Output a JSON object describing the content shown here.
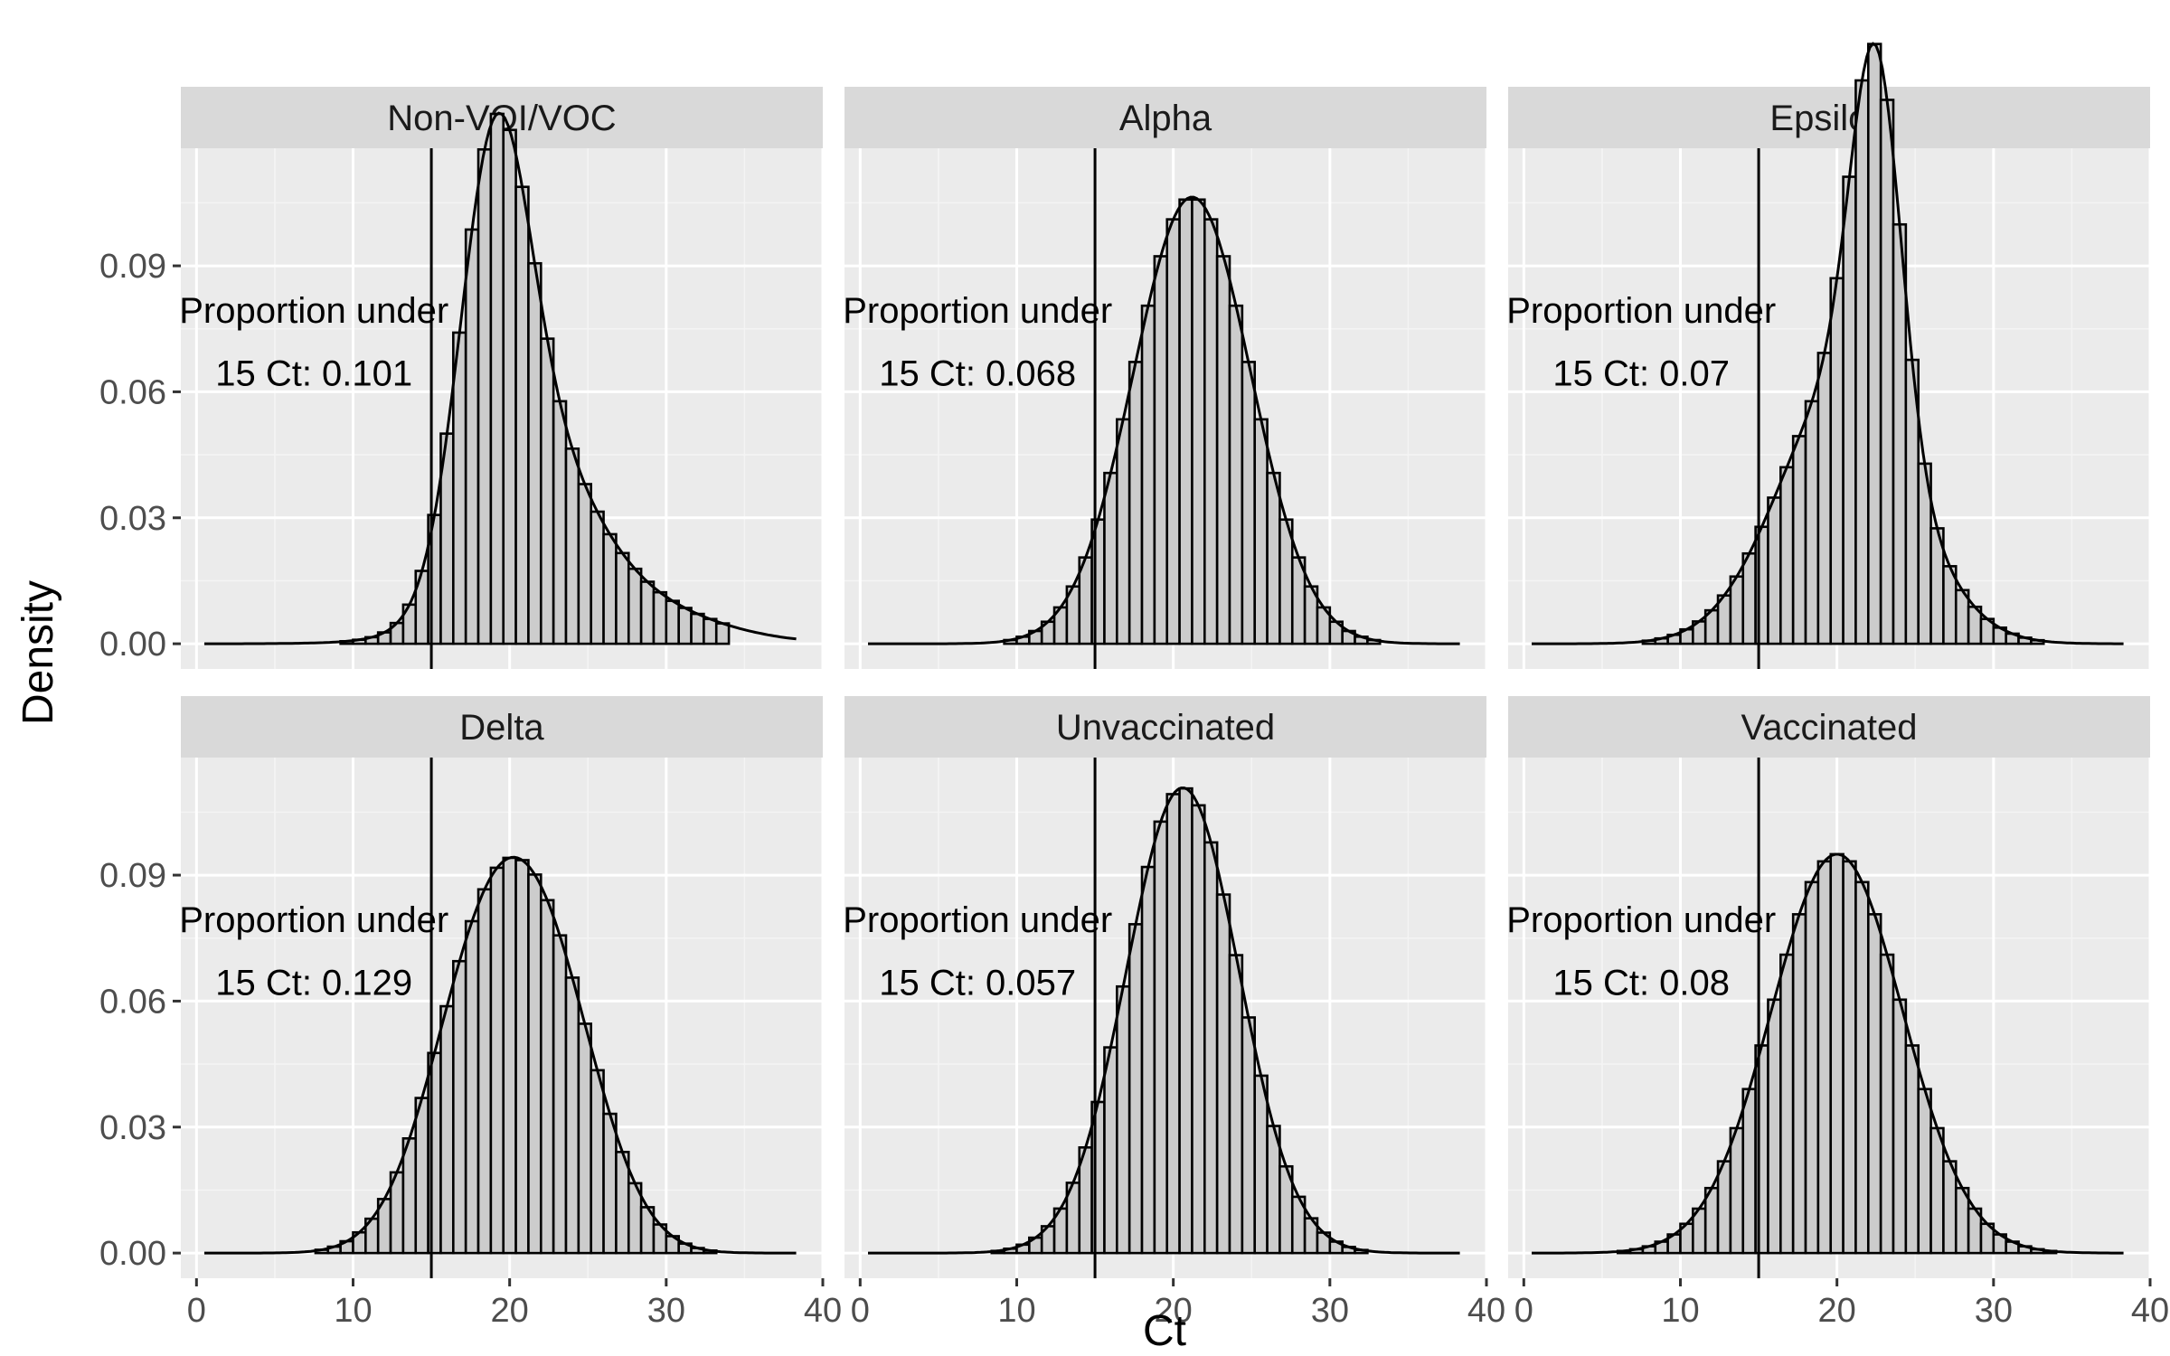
{
  "chart_data": {
    "type": "histogram+density (faceted)",
    "xlabel": "Ct",
    "ylabel": "Density",
    "xlim": [
      -1,
      40
    ],
    "ylim": [
      -0.006,
      0.118
    ],
    "x_ticks": [
      0,
      10,
      20,
      30,
      40
    ],
    "x_tick_labels": [
      "0",
      "10",
      "20",
      "30",
      "40"
    ],
    "y_ticks": [
      0.0,
      0.03,
      0.06,
      0.09
    ],
    "y_tick_labels": [
      "0.00",
      "0.03",
      "0.06",
      "0.09"
    ],
    "threshold_ct": 15,
    "bin_width": 0.8,
    "grid": true,
    "layout": "2 rows x 3 columns, shared axes",
    "panels": [
      {
        "name": "Non-VOI/VOC",
        "annotation_line1": "Proportion under",
        "annotation_line2": "15 Ct: 0.101",
        "components": [
          {
            "w": 0.5,
            "mu": 19.0,
            "sd": 2.2
          },
          {
            "w": 0.3,
            "mu": 21.5,
            "sd": 3.5
          },
          {
            "w": 0.2,
            "mu": 25.0,
            "sd": 6.0
          }
        ]
      },
      {
        "name": "Alpha",
        "annotation_line1": "Proportion under",
        "annotation_line2": "15 Ct: 0.068",
        "components": [
          {
            "w": 1.0,
            "mu": 21.2,
            "sd": 3.75
          }
        ]
      },
      {
        "name": "Epsilon",
        "annotation_line1": "Proportion under",
        "annotation_line2": "15 Ct: 0.07",
        "components": [
          {
            "w": 0.35,
            "mu": 22.5,
            "sd": 1.6
          },
          {
            "w": 0.65,
            "mu": 20.5,
            "sd": 4.2
          }
        ]
      },
      {
        "name": "Delta",
        "annotation_line1": "Proportion under",
        "annotation_line2": "15 Ct: 0.129",
        "components": [
          {
            "w": 0.5,
            "mu": 18.0,
            "sd": 3.4
          },
          {
            "w": 0.5,
            "mu": 22.5,
            "sd": 3.4
          }
        ]
      },
      {
        "name": "Unvaccinated",
        "annotation_line1": "Proportion under",
        "annotation_line2": "15 Ct: 0.057",
        "components": [
          {
            "w": 1.0,
            "mu": 20.6,
            "sd": 3.6
          }
        ]
      },
      {
        "name": "Vaccinated",
        "annotation_line1": "Proportion under",
        "annotation_line2": "15 Ct: 0.08",
        "components": [
          {
            "w": 1.0,
            "mu": 20.0,
            "sd": 4.2
          }
        ]
      }
    ]
  },
  "colors": {
    "panel_bg": "#ebebeb",
    "strip_bg": "#d9d9d9",
    "grid_major": "#ffffff",
    "grid_minor": "#f4f4f4",
    "bar_fill": "#cccccc",
    "ink": "#000000",
    "tick_text": "#4d4d4d",
    "tick_mark": "#333333"
  }
}
